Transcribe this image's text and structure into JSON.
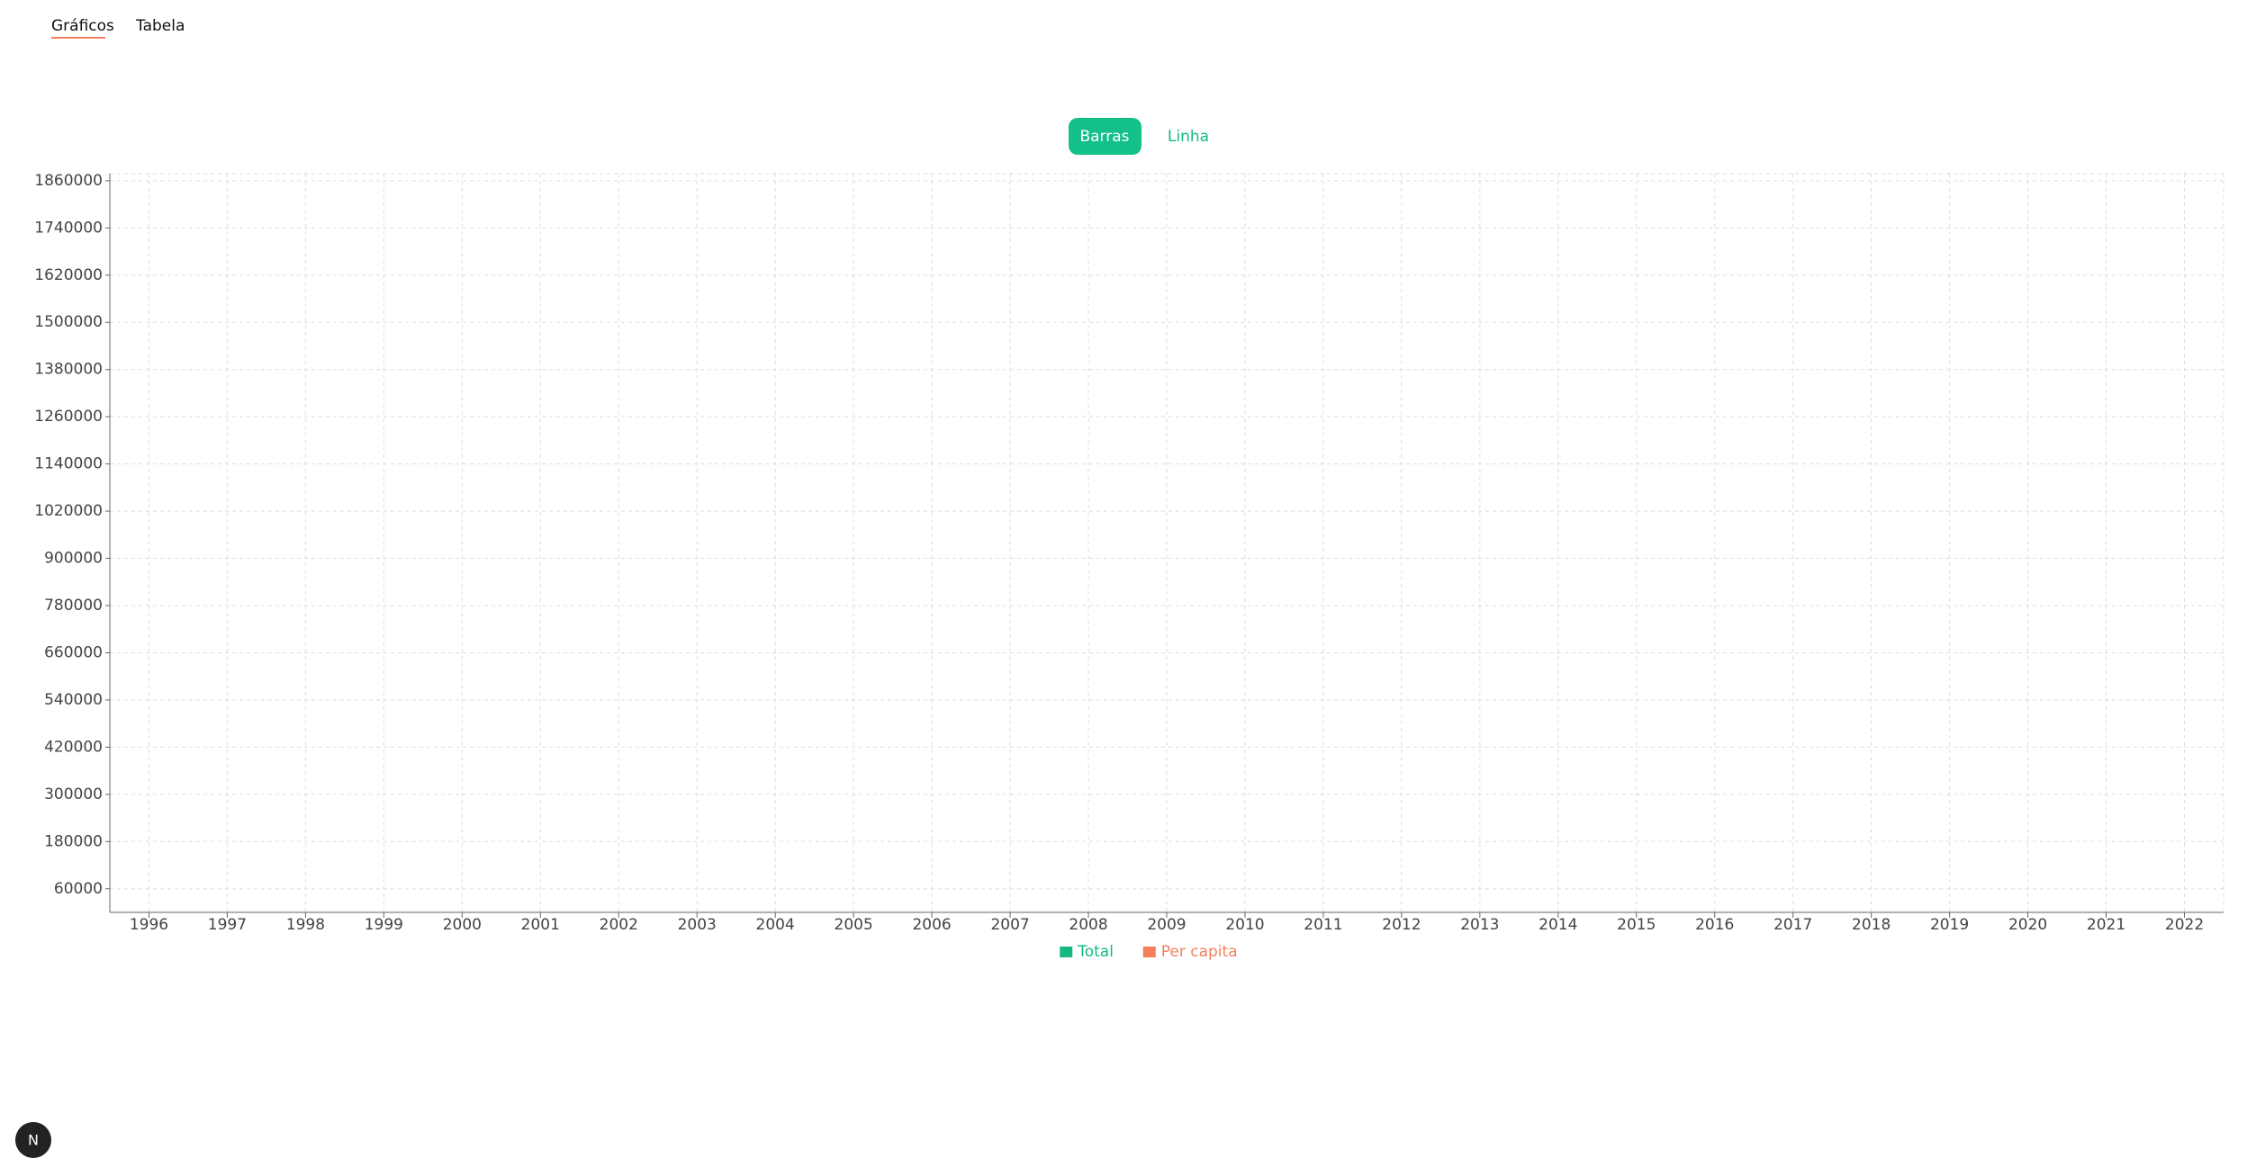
{
  "tabs": [
    "Gráficos",
    "Tabela"
  ],
  "chart_toggle": [
    "Barras",
    "Linha"
  ],
  "chart_data": {
    "type": "bar",
    "categories": [
      "1996",
      "1997",
      "1998",
      "1999",
      "2000",
      "2001",
      "2002",
      "2003",
      "2004",
      "2005",
      "2006",
      "2007",
      "2008",
      "2009",
      "2010",
      "2011",
      "2012",
      "2013",
      "2014",
      "2015",
      "2016",
      "2017",
      "2018",
      "2019",
      "2020",
      "2021",
      "2022"
    ],
    "series": [
      {
        "name": "Total",
        "color": "#14b885",
        "values": [
          null,
          null,
          null,
          null,
          null,
          null,
          null,
          null,
          null,
          null,
          null,
          null,
          null,
          null,
          null,
          null,
          null,
          null,
          null,
          null,
          null,
          null,
          null,
          null,
          null,
          null,
          null
        ]
      },
      {
        "name": "Per capita",
        "color": "#f47f5c",
        "values": [
          null,
          null,
          null,
          null,
          null,
          null,
          null,
          null,
          null,
          null,
          null,
          null,
          null,
          null,
          null,
          null,
          null,
          null,
          null,
          null,
          null,
          null,
          null,
          null,
          null,
          null,
          null
        ]
      }
    ],
    "ylim": [
      0,
      1878000
    ],
    "yticks": [
      60000,
      180000,
      300000,
      420000,
      540000,
      660000,
      780000,
      900000,
      1020000,
      1140000,
      1260000,
      1380000,
      1500000,
      1620000,
      1740000,
      1860000
    ],
    "grid": true,
    "legend": "bottom"
  }
}
